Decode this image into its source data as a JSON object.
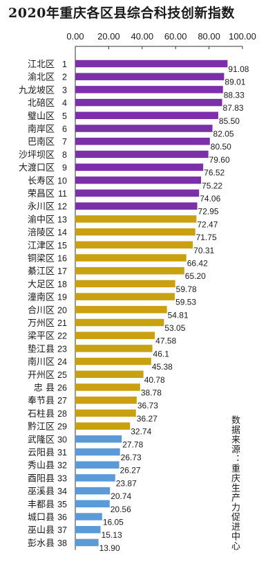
{
  "chart_data": {
    "type": "bar",
    "orientation": "horizontal",
    "title": "2020年重庆各区县综合科技创新指数",
    "source": "数据来源：重庆生产力促进中心",
    "xlim": [
      0,
      100
    ],
    "x_ticks": [
      "0.00",
      "20.00",
      "40.00",
      "60.00",
      "80.00",
      "100.00"
    ],
    "grid": false,
    "categories": [
      "江北区",
      "渝北区",
      "九龙坡区",
      "北碚区",
      "璧山区",
      "南岸区",
      "巴南区",
      "沙坪坝区",
      "大渡口区",
      "长寿区",
      "荣昌区",
      "永川区",
      "渝中区",
      "涪陵区",
      "江津区",
      "铜梁区",
      "綦江区",
      "大足区",
      "潼南区",
      "合川区",
      "万州区",
      "梁平区",
      "垫江县",
      "南川区",
      "开州区",
      "忠 县",
      "奉节县",
      "石柱县",
      "黔江区",
      "武隆区",
      "云阳县",
      "秀山县",
      "酉阳县",
      "巫溪县",
      "丰都县",
      "城口县",
      "巫山县",
      "彭水县"
    ],
    "ranks": [
      1,
      2,
      3,
      4,
      5,
      6,
      7,
      8,
      9,
      10,
      11,
      12,
      13,
      14,
      15,
      16,
      17,
      18,
      19,
      20,
      21,
      22,
      23,
      24,
      25,
      26,
      27,
      28,
      29,
      30,
      31,
      32,
      33,
      34,
      35,
      36,
      37,
      38
    ],
    "values": [
      91.08,
      89.01,
      88.33,
      87.83,
      85.5,
      82.05,
      80.5,
      79.6,
      76.52,
      75.22,
      74.06,
      72.95,
      72.47,
      71.75,
      70.31,
      66.42,
      65.2,
      59.78,
      59.53,
      54.81,
      53.05,
      47.58,
      46.1,
      45.38,
      40.78,
      38.78,
      36.73,
      36.27,
      32.74,
      27.78,
      26.73,
      26.27,
      23.87,
      20.74,
      20.56,
      16.05,
      15.13,
      13.9
    ],
    "value_labels": [
      "91.08",
      "89.01",
      "88.33",
      "87.83",
      "85.50",
      "82.05",
      "80.50",
      "79.60",
      "76.52",
      "75.22",
      "74.06",
      "72.95",
      "72.47",
      "71.75",
      "70.31",
      "66.42",
      "65.20",
      "59.78",
      "59.53",
      "54.81",
      "53.05",
      "47.58",
      "46.1",
      "45.38",
      "40.78",
      "38.78",
      "36.73",
      "36.27",
      "32.74",
      "27.78",
      "26.73",
      "26.27",
      "23.87",
      "20.74",
      "20.56",
      "16.05",
      "15.13",
      "13.90"
    ],
    "group_colors": [
      "#7b2fa8",
      "#c9a010",
      "#5a9ad8"
    ],
    "groups": [
      0,
      0,
      0,
      0,
      0,
      0,
      0,
      0,
      0,
      0,
      0,
      0,
      1,
      1,
      1,
      1,
      1,
      1,
      1,
      1,
      1,
      1,
      1,
      1,
      1,
      1,
      1,
      1,
      1,
      2,
      2,
      2,
      2,
      2,
      2,
      2,
      2,
      2
    ]
  }
}
